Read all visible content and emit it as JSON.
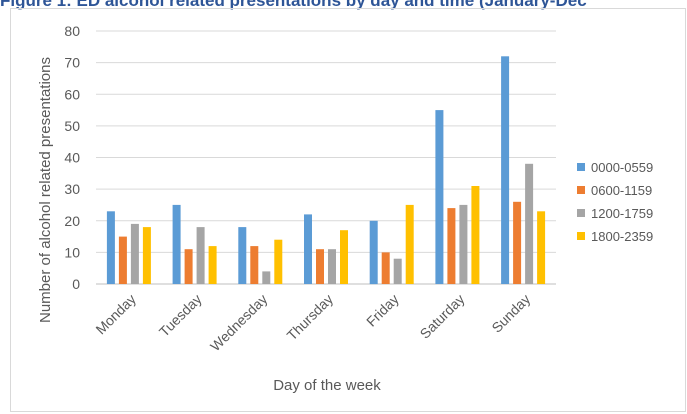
{
  "figure": {
    "title": "Figure 1: ED alcohol related presentations by day and time (January-Dec"
  },
  "chart_data": {
    "type": "bar",
    "title": "",
    "xlabel": "Day of the week",
    "ylabel": "Number of alcohol related presentations",
    "ylim": [
      0,
      80
    ],
    "yticks": [
      0,
      10,
      20,
      30,
      40,
      50,
      60,
      70,
      80
    ],
    "grid": true,
    "legend_position": "right",
    "categories": [
      "Monday",
      "Tuesday",
      "Wednesday",
      "Thursday",
      "Friday",
      "Saturday",
      "Sunday"
    ],
    "series": [
      {
        "name": "0000-0559",
        "color": "#5b9bd5",
        "values": [
          23,
          25,
          18,
          22,
          20,
          55,
          72
        ]
      },
      {
        "name": "0600-1159",
        "color": "#ed7d31",
        "values": [
          15,
          11,
          12,
          11,
          10,
          24,
          26
        ]
      },
      {
        "name": "1200-1759",
        "color": "#a5a5a5",
        "values": [
          19,
          18,
          4,
          11,
          8,
          25,
          38
        ]
      },
      {
        "name": "1800-2359",
        "color": "#ffc000",
        "values": [
          18,
          12,
          14,
          17,
          25,
          31,
          23
        ]
      }
    ]
  }
}
